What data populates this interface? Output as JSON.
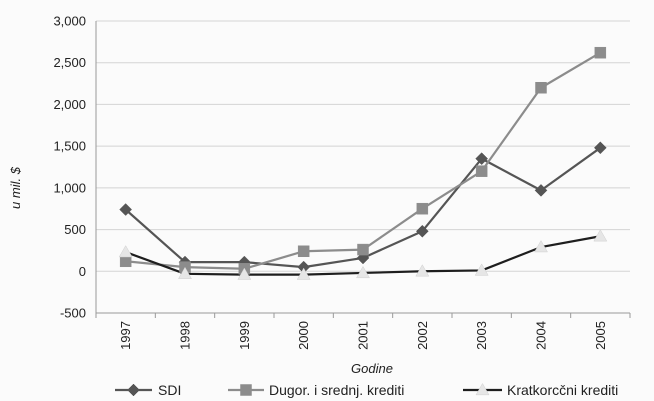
{
  "chart_data": {
    "type": "line",
    "title": "",
    "xlabel": "Godine",
    "ylabel": "u mil. $",
    "x": [
      "1997",
      "1998",
      "1999",
      "2000",
      "2001",
      "2002",
      "2003",
      "2004",
      "2005"
    ],
    "ylim": [
      -500,
      3000
    ],
    "yticks": [
      -500,
      0,
      500,
      1000,
      1500,
      2000,
      2500,
      3000
    ],
    "ytick_labels": [
      "-500",
      "0",
      "500",
      "1,000",
      "1,500",
      "2,000",
      "2,500",
      "3,000"
    ],
    "grid": true,
    "legend_position": "bottom",
    "series": [
      {
        "name": "SDI",
        "marker": "diamond",
        "color": "#555555",
        "values": [
          740,
          110,
          110,
          50,
          160,
          480,
          1350,
          970,
          1480
        ]
      },
      {
        "name": "Dugor. i srednj. krediti",
        "marker": "square",
        "color": "#8c8c8c",
        "values": [
          120,
          50,
          30,
          240,
          260,
          750,
          1200,
          2200,
          2620
        ]
      },
      {
        "name": "Kratkorcčni krediti",
        "marker": "triangle",
        "color": "#1e1e1e",
        "marker_color": "#e6e6e6",
        "values": [
          230,
          -30,
          -40,
          -40,
          -20,
          0,
          10,
          290,
          420
        ]
      }
    ]
  }
}
